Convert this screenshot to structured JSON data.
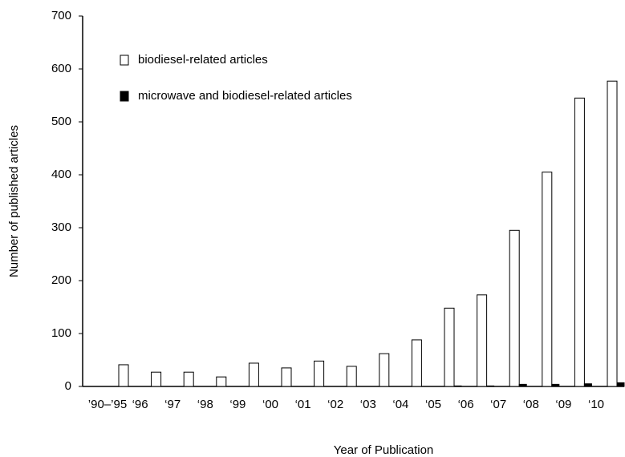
{
  "chart_data": {
    "type": "bar",
    "xlabel": "Year of Publication",
    "ylabel": "Number of published articles",
    "categories": [
      "’90–’95",
      "‘96",
      "‘97",
      "‘98",
      "‘99",
      "‘00",
      "‘01",
      "‘02",
      "‘03",
      "‘04",
      "‘05",
      "‘06",
      "‘07",
      "‘08",
      "‘09",
      "‘10"
    ],
    "series": [
      {
        "name": "biodiesel-related articles",
        "color": "#ffffff",
        "values": [
          41,
          27,
          27,
          18,
          44,
          35,
          48,
          38,
          62,
          88,
          148,
          173,
          295,
          405,
          545,
          577
        ]
      },
      {
        "name": "microwave and biodiesel-related articles",
        "color": "#000000",
        "values": [
          0,
          0,
          0,
          0,
          0,
          0,
          0,
          0,
          0,
          0,
          1,
          1,
          4,
          4,
          5,
          7
        ]
      }
    ],
    "ylim": [
      0,
      700
    ],
    "yticks": [
      0,
      100,
      200,
      300,
      400,
      500,
      600,
      700
    ],
    "legend": "upper left"
  }
}
